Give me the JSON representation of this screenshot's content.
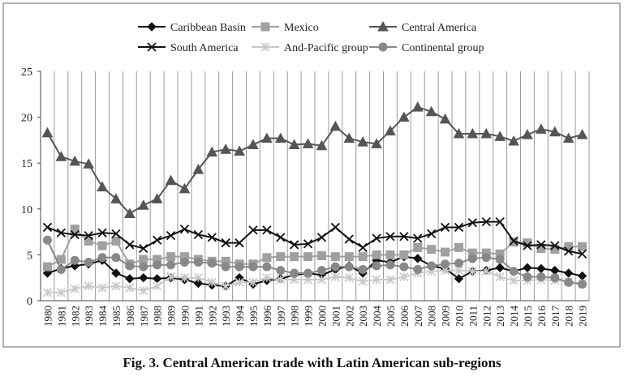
{
  "caption": "Fig. 3. Central American trade with Latin American sub-regions",
  "chart_data": {
    "type": "line",
    "title": "",
    "xlabel": "",
    "ylabel": "",
    "ylim": [
      0,
      25
    ],
    "yticks": [
      0,
      5,
      10,
      15,
      20,
      25
    ],
    "grid": "vertical",
    "legend_position": "top",
    "x": [
      "1980",
      "1981",
      "1982",
      "1983",
      "1984",
      "1985",
      "1986",
      "1987",
      "1988",
      "1989",
      "1990",
      "1991",
      "1992",
      "1993",
      "1994",
      "1995",
      "1996",
      "1997",
      "1998",
      "1999",
      "2000",
      "2001",
      "2002",
      "2003",
      "2004",
      "2005",
      "2006",
      "2007",
      "2008",
      "2009",
      "2010",
      "2011",
      "2012",
      "2013",
      "2014",
      "2015",
      "2016",
      "2017",
      "2018",
      "2019"
    ],
    "series": [
      {
        "name": "Caribbean Basin",
        "marker": "diamond",
        "color": "#111111",
        "width": 2,
        "values": [
          3.0,
          3.5,
          3.8,
          4.0,
          4.4,
          3.0,
          2.4,
          2.5,
          2.4,
          2.5,
          2.3,
          1.9,
          1.7,
          1.6,
          2.5,
          1.8,
          2.2,
          2.4,
          2.8,
          3.0,
          2.8,
          3.4,
          3.8,
          3.0,
          4.4,
          4.2,
          4.8,
          4.6,
          3.8,
          3.5,
          2.4,
          3.2,
          3.3,
          3.6,
          3.2,
          3.6,
          3.5,
          3.3,
          3.0,
          2.7
        ]
      },
      {
        "name": "Mexico",
        "marker": "square",
        "color": "#a0a0a0",
        "width": 2,
        "values": [
          3.7,
          4.5,
          7.8,
          6.5,
          6.0,
          6.5,
          4.0,
          4.5,
          4.5,
          4.8,
          4.8,
          4.5,
          4.3,
          4.3,
          4.0,
          4.0,
          4.7,
          4.8,
          4.8,
          4.8,
          4.9,
          4.8,
          4.8,
          4.8,
          5.0,
          5.0,
          5.0,
          5.8,
          5.6,
          5.3,
          5.8,
          5.2,
          5.2,
          5.1,
          6.4,
          6.3,
          5.7,
          5.6,
          5.9,
          5.9
        ]
      },
      {
        "name": "Central America",
        "marker": "triangle",
        "color": "#555555",
        "width": 2,
        "values": [
          18.3,
          15.7,
          15.2,
          14.9,
          12.4,
          11.1,
          9.5,
          10.4,
          11.1,
          13.1,
          12.2,
          14.3,
          16.2,
          16.5,
          16.3,
          17.0,
          17.7,
          17.7,
          17.0,
          17.1,
          16.9,
          19.0,
          17.7,
          17.3,
          17.1,
          18.5,
          20.0,
          21.1,
          20.6,
          19.8,
          18.2,
          18.2,
          18.2,
          17.9,
          17.4,
          18.1,
          18.7,
          18.4,
          17.7,
          18.1
        ]
      },
      {
        "name": "South America",
        "marker": "x",
        "color": "#111111",
        "width": 2,
        "values": [
          8.0,
          7.4,
          7.2,
          7.1,
          7.4,
          7.3,
          6.1,
          5.7,
          6.6,
          7.1,
          7.8,
          7.2,
          6.9,
          6.3,
          6.3,
          7.7,
          7.7,
          6.9,
          6.1,
          6.2,
          6.9,
          8.0,
          6.7,
          5.8,
          6.8,
          7.0,
          7.0,
          6.8,
          7.3,
          8.0,
          8.0,
          8.5,
          8.6,
          8.6,
          6.5,
          6.0,
          6.1,
          6.0,
          5.4,
          5.1
        ]
      },
      {
        "name": "And-Pacific group",
        "marker": "asterisk",
        "color": "#c8c8c8",
        "width": 2,
        "values": [
          0.9,
          0.9,
          1.3,
          1.6,
          1.4,
          1.6,
          1.4,
          1.1,
          1.6,
          2.6,
          2.5,
          2.5,
          2.0,
          1.6,
          2.0,
          2.0,
          2.5,
          2.3,
          2.3,
          2.3,
          2.3,
          2.6,
          2.5,
          2.1,
          2.3,
          2.3,
          2.6,
          3.0,
          3.2,
          3.3,
          3.3,
          3.2,
          3.2,
          2.6,
          2.2,
          2.2,
          2.3,
          2.2,
          2.1,
          1.9
        ]
      },
      {
        "name": "Continental group",
        "marker": "circle",
        "color": "#888888",
        "width": 2,
        "values": [
          6.6,
          3.4,
          4.4,
          4.2,
          4.7,
          4.7,
          3.8,
          3.7,
          3.9,
          3.9,
          4.2,
          4.2,
          4.1,
          3.7,
          3.7,
          3.7,
          3.7,
          3.3,
          3.0,
          3.0,
          3.3,
          3.7,
          3.7,
          3.4,
          3.8,
          3.9,
          3.7,
          3.4,
          3.8,
          4.0,
          4.1,
          4.6,
          4.7,
          4.5,
          3.2,
          2.6,
          2.6,
          2.5,
          2.0,
          1.8
        ]
      }
    ]
  }
}
